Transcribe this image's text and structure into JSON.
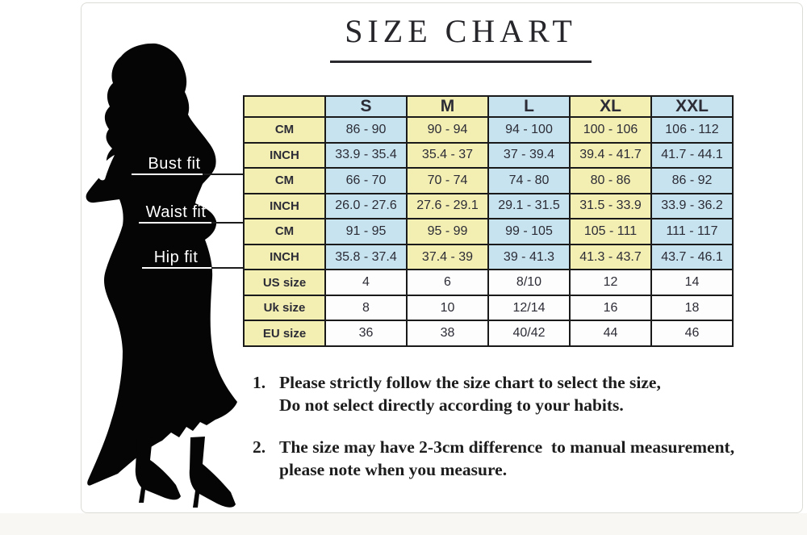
{
  "title": "SIZE CHART",
  "figure": {
    "bust_label": "Bust fit",
    "waist_label": "Waist fit",
    "hip_label": "Hip fit"
  },
  "chart_data": {
    "type": "table",
    "title": "SIZE CHART",
    "columns": [
      "",
      "S",
      "M",
      "L",
      "XL",
      "XXL"
    ],
    "rows": [
      {
        "fit": "Bust fit",
        "unit": "CM",
        "values": [
          "86 - 90",
          "90 - 94",
          "94 - 100",
          "100 - 106",
          "106 - 112"
        ]
      },
      {
        "fit": "Bust fit",
        "unit": "INCH",
        "values": [
          "33.9 - 35.4",
          "35.4 - 37",
          "37 - 39.4",
          "39.4 - 41.7",
          "41.7 - 44.1"
        ]
      },
      {
        "fit": "Waist fit",
        "unit": "CM",
        "values": [
          "66 - 70",
          "70 - 74",
          "74 - 80",
          "80 - 86",
          "86 - 92"
        ]
      },
      {
        "fit": "Waist fit",
        "unit": "INCH",
        "values": [
          "26.0 - 27.6",
          "27.6 - 29.1",
          "29.1 - 31.5",
          "31.5 - 33.9",
          "33.9 - 36.2"
        ]
      },
      {
        "fit": "Hip fit",
        "unit": "CM",
        "values": [
          "91 - 95",
          "95 - 99",
          "99 - 105",
          "105 - 111",
          "111 - 117"
        ]
      },
      {
        "fit": "Hip fit",
        "unit": "INCH",
        "values": [
          "35.8 - 37.4",
          "37.4 - 39",
          "39 - 41.3",
          "41.3 - 43.7",
          "43.7 - 46.1"
        ]
      },
      {
        "fit": "",
        "unit": "US size",
        "values": [
          "4",
          "6",
          "8/10",
          "12",
          "14"
        ]
      },
      {
        "fit": "",
        "unit": "Uk size",
        "values": [
          "8",
          "10",
          "12/14",
          "16",
          "18"
        ]
      },
      {
        "fit": "",
        "unit": "EU size",
        "values": [
          "36",
          "38",
          "40/42",
          "44",
          "46"
        ]
      }
    ]
  },
  "notes": [
    {
      "number": "1.",
      "line1": "Please strictly follow the size chart to select the size,",
      "line2": "Do not select directly according to your habits."
    },
    {
      "number": "2.",
      "line1": "The size may have 2-3cm difference  to manual measurement,",
      "line2": "please note when you measure."
    }
  ],
  "colors": {
    "cell_yellow": "#f3eeb2",
    "cell_blue": "#c6e3ef",
    "cell_white": "#fdfdfd",
    "table_border": "#1a1a1a",
    "silhouette": "#050505"
  }
}
